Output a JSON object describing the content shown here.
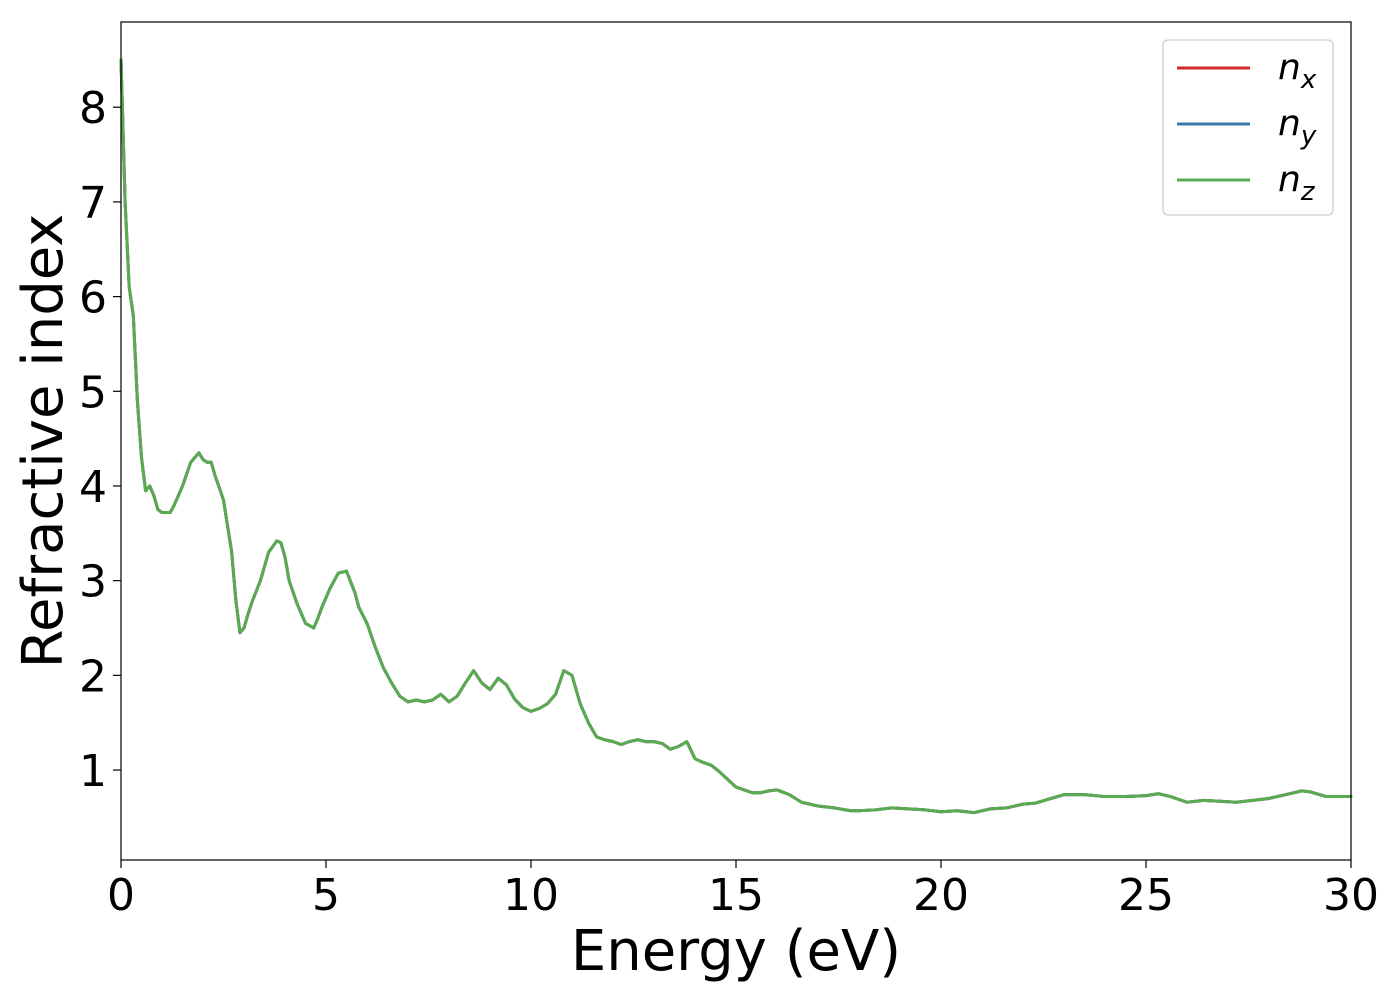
{
  "chart_data": {
    "type": "line",
    "title": "",
    "xlabel": "Energy (eV)",
    "ylabel": "Refractive index",
    "xlim": [
      0,
      30
    ],
    "ylim": [
      0.05,
      8.9
    ],
    "xticks": [
      0,
      5,
      10,
      15,
      20,
      25,
      30
    ],
    "yticks": [
      1,
      2,
      3,
      4,
      5,
      6,
      7,
      8
    ],
    "grid": false,
    "legend_position": "top-right",
    "x": [
      0,
      0.1,
      0.2,
      0.3,
      0.4,
      0.5,
      0.6,
      0.7,
      0.8,
      0.9,
      1.0,
      1.1,
      1.2,
      1.3,
      1.5,
      1.7,
      1.9,
      2.0,
      2.1,
      2.2,
      2.3,
      2.4,
      2.5,
      2.7,
      2.8,
      2.9,
      3.0,
      3.1,
      3.2,
      3.4,
      3.6,
      3.8,
      3.9,
      4.0,
      4.1,
      4.3,
      4.5,
      4.7,
      4.8,
      4.9,
      5.1,
      5.3,
      5.5,
      5.7,
      5.8,
      6.0,
      6.2,
      6.4,
      6.6,
      6.8,
      7.0,
      7.2,
      7.4,
      7.6,
      7.8,
      8.0,
      8.2,
      8.4,
      8.6,
      8.8,
      9.0,
      9.2,
      9.4,
      9.6,
      9.8,
      10.0,
      10.2,
      10.4,
      10.6,
      10.8,
      11.0,
      11.2,
      11.4,
      11.6,
      11.8,
      12.0,
      12.2,
      12.4,
      12.6,
      12.8,
      13.0,
      13.2,
      13.4,
      13.6,
      13.8,
      14.0,
      14.2,
      14.4,
      14.6,
      14.8,
      15.0,
      15.2,
      15.4,
      15.6,
      15.8,
      16.0,
      16.3,
      16.6,
      17.0,
      17.4,
      17.8,
      18.0,
      18.4,
      18.8,
      19.2,
      19.6,
      20.0,
      20.4,
      20.8,
      21.2,
      21.6,
      22.0,
      22.3,
      22.6,
      23.0,
      23.5,
      24.0,
      24.5,
      25.0,
      25.3,
      25.6,
      26.0,
      26.4,
      26.8,
      27.2,
      27.6,
      28.0,
      28.4,
      28.8,
      29.0,
      29.4,
      30.0
    ],
    "series": [
      {
        "name": "n_x",
        "color": "#d62728",
        "y": [
          8.5,
          7.0,
          6.1,
          5.8,
          4.9,
          4.3,
          3.95,
          4.0,
          3.9,
          3.75,
          3.72,
          3.72,
          3.72,
          3.8,
          4.0,
          4.25,
          4.35,
          4.28,
          4.25,
          4.25,
          4.1,
          3.98,
          3.85,
          3.3,
          2.8,
          2.45,
          2.5,
          2.65,
          2.78,
          3.0,
          3.3,
          3.42,
          3.4,
          3.25,
          3.0,
          2.75,
          2.55,
          2.5,
          2.6,
          2.72,
          2.92,
          3.08,
          3.1,
          2.88,
          2.72,
          2.55,
          2.3,
          2.08,
          1.92,
          1.78,
          1.72,
          1.74,
          1.72,
          1.74,
          1.8,
          1.72,
          1.78,
          1.92,
          2.05,
          1.92,
          1.85,
          1.97,
          1.9,
          1.75,
          1.66,
          1.62,
          1.65,
          1.7,
          1.8,
          2.05,
          2.0,
          1.7,
          1.5,
          1.35,
          1.32,
          1.3,
          1.27,
          1.3,
          1.32,
          1.3,
          1.3,
          1.28,
          1.22,
          1.25,
          1.3,
          1.12,
          1.08,
          1.05,
          0.98,
          0.9,
          0.82,
          0.79,
          0.76,
          0.76,
          0.78,
          0.79,
          0.74,
          0.66,
          0.62,
          0.6,
          0.57,
          0.57,
          0.58,
          0.6,
          0.59,
          0.58,
          0.56,
          0.57,
          0.55,
          0.59,
          0.6,
          0.64,
          0.65,
          0.69,
          0.74,
          0.74,
          0.72,
          0.72,
          0.73,
          0.75,
          0.72,
          0.66,
          0.68,
          0.67,
          0.66,
          0.68,
          0.7,
          0.74,
          0.78,
          0.77,
          0.72,
          0.72
        ]
      },
      {
        "name": "n_y",
        "color": "#3a7bad",
        "y": [
          8.5,
          7.0,
          6.1,
          5.8,
          4.9,
          4.3,
          3.95,
          4.0,
          3.9,
          3.75,
          3.72,
          3.72,
          3.72,
          3.8,
          4.0,
          4.25,
          4.35,
          4.28,
          4.25,
          4.25,
          4.1,
          3.98,
          3.85,
          3.3,
          2.8,
          2.45,
          2.5,
          2.65,
          2.78,
          3.0,
          3.3,
          3.42,
          3.4,
          3.25,
          3.0,
          2.75,
          2.55,
          2.5,
          2.6,
          2.72,
          2.92,
          3.08,
          3.1,
          2.88,
          2.72,
          2.55,
          2.3,
          2.08,
          1.92,
          1.78,
          1.72,
          1.74,
          1.72,
          1.74,
          1.8,
          1.72,
          1.78,
          1.92,
          2.05,
          1.92,
          1.85,
          1.97,
          1.9,
          1.75,
          1.66,
          1.62,
          1.65,
          1.7,
          1.8,
          2.05,
          2.0,
          1.7,
          1.5,
          1.35,
          1.32,
          1.3,
          1.27,
          1.3,
          1.32,
          1.3,
          1.3,
          1.28,
          1.22,
          1.25,
          1.3,
          1.12,
          1.08,
          1.05,
          0.98,
          0.9,
          0.82,
          0.79,
          0.76,
          0.76,
          0.78,
          0.79,
          0.74,
          0.66,
          0.62,
          0.6,
          0.57,
          0.57,
          0.58,
          0.6,
          0.59,
          0.58,
          0.56,
          0.57,
          0.55,
          0.59,
          0.6,
          0.64,
          0.65,
          0.69,
          0.74,
          0.74,
          0.72,
          0.72,
          0.73,
          0.75,
          0.72,
          0.66,
          0.68,
          0.67,
          0.66,
          0.68,
          0.7,
          0.74,
          0.78,
          0.77,
          0.72,
          0.72
        ]
      },
      {
        "name": "n_z",
        "color": "#5aaa50",
        "y": [
          8.5,
          7.0,
          6.1,
          5.8,
          4.9,
          4.3,
          3.95,
          4.0,
          3.9,
          3.75,
          3.72,
          3.72,
          3.72,
          3.8,
          4.0,
          4.25,
          4.35,
          4.28,
          4.25,
          4.25,
          4.1,
          3.98,
          3.85,
          3.3,
          2.8,
          2.45,
          2.5,
          2.65,
          2.78,
          3.0,
          3.3,
          3.42,
          3.4,
          3.25,
          3.0,
          2.75,
          2.55,
          2.5,
          2.6,
          2.72,
          2.92,
          3.08,
          3.1,
          2.88,
          2.72,
          2.55,
          2.3,
          2.08,
          1.92,
          1.78,
          1.72,
          1.74,
          1.72,
          1.74,
          1.8,
          1.72,
          1.78,
          1.92,
          2.05,
          1.92,
          1.85,
          1.97,
          1.9,
          1.75,
          1.66,
          1.62,
          1.65,
          1.7,
          1.8,
          2.05,
          2.0,
          1.7,
          1.5,
          1.35,
          1.32,
          1.3,
          1.27,
          1.3,
          1.32,
          1.3,
          1.3,
          1.28,
          1.22,
          1.25,
          1.3,
          1.12,
          1.08,
          1.05,
          0.98,
          0.9,
          0.82,
          0.79,
          0.76,
          0.76,
          0.78,
          0.79,
          0.74,
          0.66,
          0.62,
          0.6,
          0.57,
          0.57,
          0.58,
          0.6,
          0.59,
          0.58,
          0.56,
          0.57,
          0.55,
          0.59,
          0.6,
          0.64,
          0.65,
          0.69,
          0.74,
          0.74,
          0.72,
          0.72,
          0.73,
          0.75,
          0.72,
          0.66,
          0.68,
          0.67,
          0.66,
          0.68,
          0.7,
          0.74,
          0.78,
          0.77,
          0.72,
          0.72
        ]
      }
    ],
    "legend": [
      {
        "base": "n",
        "sub": "x",
        "color": "#d62728"
      },
      {
        "base": "n",
        "sub": "y",
        "color": "#3a7bad"
      },
      {
        "base": "n",
        "sub": "z",
        "color": "#5aaa50"
      }
    ]
  }
}
